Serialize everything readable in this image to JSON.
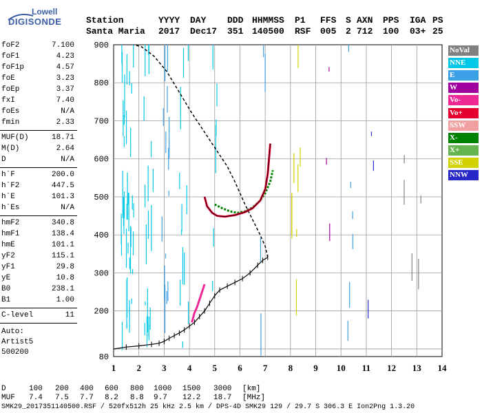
{
  "logo": {
    "top": "Lowell",
    "bottom": "DIGISONDE"
  },
  "header": {
    "row1": [
      "Station",
      "YYYY",
      "DAY",
      "DDD",
      "HHMMSS",
      "P1",
      "FFS",
      "S",
      "AXN",
      "PPS",
      "IGA",
      "PS"
    ],
    "row2": [
      "Santa Maria",
      "2017",
      "Dec17",
      "351",
      "140500",
      "RSF",
      "005",
      "2",
      "712",
      "100",
      "03+",
      "25"
    ]
  },
  "params": {
    "group1": [
      {
        "name": "foF2",
        "value": "7.100"
      },
      {
        "name": "foF1",
        "value": "4.23"
      },
      {
        "name": "foF1p",
        "value": "4.57"
      },
      {
        "name": "foE",
        "value": "3.23"
      },
      {
        "name": "foEp",
        "value": "3.37"
      },
      {
        "name": "fxI",
        "value": "7.40"
      },
      {
        "name": "foEs",
        "value": "N/A"
      },
      {
        "name": "fmin",
        "value": "2.33"
      }
    ],
    "group2": [
      {
        "name": "MUF(D)",
        "value": "18.71"
      },
      {
        "name": "M(D)",
        "value": "2.64"
      },
      {
        "name": "D",
        "value": "N/A"
      }
    ],
    "group3": [
      {
        "name": "h`F",
        "value": "200.0"
      },
      {
        "name": "h`F2",
        "value": "447.5"
      },
      {
        "name": "h`E",
        "value": "101.3"
      },
      {
        "name": "h`Es",
        "value": "N/A"
      }
    ],
    "group4": [
      {
        "name": "hmF2",
        "value": "340.8"
      },
      {
        "name": "hmF1",
        "value": "138.4"
      },
      {
        "name": "hmE",
        "value": "101.1"
      },
      {
        "name": "yF2",
        "value": "115.1"
      },
      {
        "name": "yF1",
        "value": "29.8"
      },
      {
        "name": "yE",
        "value": "10.8"
      },
      {
        "name": "B0",
        "value": "238.1"
      },
      {
        "name": "B1",
        "value": "1.00"
      }
    ],
    "group5": [
      {
        "name": "C-level",
        "value": "11"
      }
    ],
    "auto": [
      "Auto:",
      "Artist5",
      "500200"
    ]
  },
  "legend": [
    {
      "label": "NoVal",
      "bg": "#808080",
      "fg": "#ffffff"
    },
    {
      "label": "NNE",
      "bg": "#00c8e6",
      "fg": "#ffffff"
    },
    {
      "label": "E",
      "bg": "#3ca0e6",
      "fg": "#ffffff"
    },
    {
      "label": "W",
      "bg": "#a0009e",
      "fg": "#ffffff"
    },
    {
      "label": "Vo-",
      "bg": "#f02896",
      "fg": "#ffffff"
    },
    {
      "label": "Vo+",
      "bg": "#e60032",
      "fg": "#ffffff"
    },
    {
      "label": "SSW",
      "bg": "#f0a0a0",
      "fg": "#ffffff"
    },
    {
      "label": "X-",
      "bg": "#008200",
      "fg": "#ffffff"
    },
    {
      "label": "X+",
      "bg": "#64b450",
      "fg": "#ffffff"
    },
    {
      "label": "SSE",
      "bg": "#d2d200",
      "fg": "#ffffff"
    },
    {
      "label": "NNW",
      "bg": "#2828c8",
      "fg": "#ffffff"
    }
  ],
  "footer": {
    "dist_label": "D",
    "dist_values": [
      "100",
      "200",
      "400",
      "600",
      "800",
      "1000",
      "1500",
      "3000"
    ],
    "dist_unit": "[km]",
    "muf_label": "MUF",
    "muf_values": [
      "7.4",
      "7.5",
      "7.7",
      "8.2",
      "8.8",
      "9.7",
      "12.2",
      "18.7"
    ],
    "muf_unit": "[MHz]",
    "file_line": "SMK29_2017351140500.RSF / 520fx512h 25 kHz 2.5 km / DPS-4D SMK29 129 / 29.7 S 306.3 E Ion2Png 1.3.20"
  },
  "chart_data": {
    "type": "scatter",
    "xlim": [
      1,
      14
    ],
    "ylim": [
      80,
      900
    ],
    "x_ticks": [
      1,
      2,
      3,
      4,
      5,
      6,
      7,
      8,
      9,
      10,
      11,
      12,
      13,
      14
    ],
    "y_ticks": [
      100,
      200,
      300,
      400,
      500,
      600,
      700,
      800,
      900
    ],
    "y_tick_labels": [
      "",
      "200",
      "300",
      "400",
      "500",
      "600",
      "700",
      "800",
      "900"
    ],
    "extra_y_labels": [
      80
    ],
    "grid": true,
    "series": [
      {
        "name": "profile",
        "points": [
          [
            1,
            100
          ],
          [
            1.5,
            105
          ],
          [
            2,
            108
          ],
          [
            2.5,
            112
          ],
          [
            2.8,
            115
          ],
          [
            3.0,
            120
          ],
          [
            3.2,
            128
          ],
          [
            3.4,
            135
          ],
          [
            3.6,
            142
          ],
          [
            3.8,
            150
          ],
          [
            4.0,
            160
          ],
          [
            4.2,
            170
          ],
          [
            4.4,
            185
          ],
          [
            4.6,
            200
          ],
          [
            4.8,
            220
          ],
          [
            5.0,
            240
          ],
          [
            5.2,
            255
          ],
          [
            5.5,
            265
          ],
          [
            5.8,
            275
          ],
          [
            6.1,
            285
          ],
          [
            6.4,
            300
          ],
          [
            6.7,
            320
          ],
          [
            6.9,
            333
          ],
          [
            7.1,
            341
          ]
        ]
      },
      {
        "name": "dashed",
        "points": [
          [
            7.1,
            341
          ],
          [
            7.0,
            370
          ],
          [
            6.8,
            400
          ],
          [
            6.5,
            440
          ],
          [
            6.2,
            480
          ],
          [
            5.8,
            540
          ],
          [
            5.5,
            580
          ],
          [
            5.1,
            620
          ],
          [
            4.6,
            670
          ],
          [
            4.1,
            720
          ],
          [
            3.6,
            775
          ],
          [
            3.1,
            830
          ],
          [
            2.6,
            870
          ],
          [
            2.1,
            895
          ],
          [
            1.8,
            900
          ]
        ]
      },
      {
        "name": "trace",
        "points": [
          [
            4.6,
            500
          ],
          [
            4.7,
            475
          ],
          [
            4.9,
            458
          ],
          [
            5.1,
            450
          ],
          [
            5.4,
            448
          ],
          [
            5.8,
            452
          ],
          [
            6.2,
            460
          ],
          [
            6.5,
            470
          ],
          [
            6.8,
            490
          ],
          [
            7.0,
            520
          ],
          [
            7.1,
            560
          ],
          [
            7.15,
            600
          ],
          [
            7.2,
            640
          ]
        ]
      },
      {
        "name": "trace-x",
        "points": [
          [
            5.0,
            480
          ],
          [
            5.3,
            470
          ],
          [
            5.6,
            462
          ],
          [
            5.9,
            458
          ],
          [
            6.2,
            462
          ],
          [
            6.5,
            472
          ],
          [
            6.8,
            490
          ],
          [
            7.0,
            510
          ],
          [
            7.2,
            540
          ],
          [
            7.3,
            570
          ]
        ]
      },
      {
        "name": "low-trace",
        "points": [
          [
            4.1,
            170
          ],
          [
            4.2,
            195
          ],
          [
            4.3,
            210
          ],
          [
            4.4,
            230
          ],
          [
            4.5,
            250
          ],
          [
            4.6,
            270
          ]
        ]
      }
    ]
  }
}
